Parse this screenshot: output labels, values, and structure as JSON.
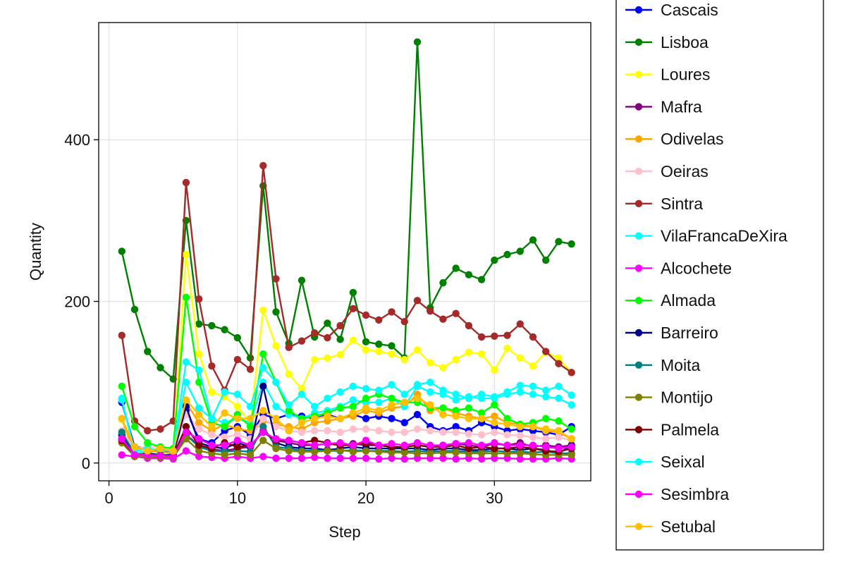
{
  "chart_data": {
    "type": "line",
    "xlabel": "Step",
    "ylabel": "Quantity",
    "xlim": [
      -0.8,
      37.5
    ],
    "ylim": [
      -22,
      545
    ],
    "xticks": [
      0,
      10,
      20,
      30
    ],
    "yticks": [
      0,
      200,
      400
    ],
    "grid": true,
    "legend_position": "right",
    "x": [
      1,
      2,
      3,
      4,
      5,
      6,
      7,
      8,
      9,
      10,
      11,
      12,
      13,
      14,
      15,
      16,
      17,
      18,
      19,
      20,
      21,
      22,
      23,
      24,
      25,
      26,
      27,
      28,
      29,
      30,
      31,
      32,
      33,
      34,
      35,
      36
    ],
    "series": [
      {
        "name": "Cascais",
        "color": "#0000ff",
        "values": [
          75,
          20,
          18,
          15,
          12,
          65,
          30,
          25,
          40,
          45,
          35,
          60,
          55,
          60,
          58,
          55,
          60,
          55,
          60,
          55,
          58,
          55,
          50,
          60,
          45,
          40,
          45,
          40,
          50,
          45,
          40,
          42,
          40,
          38,
          35,
          45
        ]
      },
      {
        "name": "Lisboa",
        "color": "#008000",
        "values": [
          262,
          190,
          138,
          118,
          104,
          300,
          172,
          170,
          165,
          155,
          130,
          343,
          187,
          148,
          226,
          156,
          173,
          153,
          211,
          150,
          147,
          145,
          130,
          521,
          192,
          223,
          241,
          233,
          227,
          251,
          258,
          262,
          276,
          251,
          274,
          271
        ]
      },
      {
        "name": "Loures",
        "color": "#ffff00",
        "values": [
          54,
          12,
          14,
          14,
          11,
          258,
          135,
          88,
          82,
          70,
          50,
          189,
          145,
          110,
          92,
          128,
          130,
          134,
          152,
          140,
          138,
          135,
          128,
          140,
          124,
          118,
          128,
          137,
          135,
          115,
          142,
          130,
          120,
          137,
          130,
          112
        ]
      },
      {
        "name": "Mafra",
        "color": "#800080",
        "values": [
          30,
          10,
          9,
          8,
          8,
          35,
          22,
          17,
          15,
          18,
          20,
          40,
          28,
          25,
          22,
          22,
          24,
          22,
          24,
          22,
          22,
          20,
          20,
          22,
          20,
          22,
          24,
          22,
          20,
          24,
          22,
          25,
          20,
          22,
          20,
          22
        ]
      },
      {
        "name": "Odivelas",
        "color": "#ffa500",
        "values": [
          55,
          12,
          15,
          14,
          12,
          75,
          50,
          40,
          48,
          42,
          40,
          52,
          48,
          45,
          42,
          50,
          52,
          55,
          58,
          65,
          62,
          68,
          70,
          85,
          65,
          68,
          62,
          58,
          55,
          58,
          50,
          48,
          45,
          40,
          38,
          30
        ]
      },
      {
        "name": "Oeiras",
        "color": "#ffc0cb",
        "values": [
          40,
          18,
          20,
          20,
          18,
          60,
          42,
          35,
          32,
          35,
          30,
          55,
          45,
          40,
          38,
          40,
          40,
          38,
          42,
          42,
          40,
          38,
          38,
          42,
          40,
          38,
          38,
          36,
          35,
          38,
          35,
          34,
          32,
          30,
          32,
          28
        ]
      },
      {
        "name": "Sintra",
        "color": "#a52a2a",
        "values": [
          158,
          52,
          40,
          42,
          52,
          347,
          203,
          120,
          90,
          128,
          116,
          368,
          228,
          143,
          151,
          161,
          155,
          170,
          191,
          183,
          177,
          187,
          175,
          201,
          188,
          178,
          185,
          170,
          156,
          157,
          158,
          172,
          156,
          138,
          123,
          112
        ]
      },
      {
        "name": "VilaFrancaDeXira",
        "color": "#00ffff",
        "values": [
          78,
          15,
          18,
          16,
          15,
          100,
          68,
          55,
          50,
          55,
          50,
          100,
          70,
          60,
          55,
          62,
          65,
          70,
          78,
          75,
          75,
          80,
          70,
          95,
          88,
          85,
          78,
          82,
          80,
          80,
          85,
          88,
          85,
          82,
          80,
          72
        ]
      },
      {
        "name": "Alcochete",
        "color": "#ff00ff",
        "values": [
          10,
          8,
          6,
          6,
          5,
          15,
          8,
          7,
          6,
          8,
          6,
          8,
          6,
          6,
          6,
          7,
          6,
          6,
          6,
          6,
          5,
          6,
          5,
          6,
          6,
          6,
          5,
          6,
          5,
          6,
          6,
          5,
          5,
          5,
          6,
          5
        ]
      },
      {
        "name": "Almada",
        "color": "#00ff00",
        "values": [
          95,
          45,
          25,
          20,
          18,
          205,
          100,
          50,
          45,
          60,
          45,
          135,
          100,
          65,
          55,
          58,
          62,
          68,
          70,
          80,
          85,
          80,
          75,
          75,
          68,
          68,
          65,
          68,
          62,
          72,
          55,
          48,
          50,
          55,
          52,
          42
        ]
      },
      {
        "name": "Barreiro",
        "color": "#00008b",
        "values": [
          35,
          10,
          12,
          10,
          10,
          70,
          25,
          20,
          18,
          25,
          20,
          95,
          25,
          20,
          18,
          18,
          16,
          18,
          20,
          18,
          18,
          18,
          18,
          18,
          16,
          18,
          18,
          16,
          16,
          18,
          18,
          16,
          18,
          16,
          12,
          22
        ]
      },
      {
        "name": "Moita",
        "color": "#008080",
        "values": [
          38,
          12,
          10,
          10,
          9,
          35,
          20,
          15,
          14,
          15,
          14,
          45,
          20,
          18,
          15,
          16,
          15,
          15,
          16,
          15,
          15,
          15,
          14,
          15,
          14,
          15,
          15,
          14,
          14,
          15,
          14,
          14,
          13,
          14,
          12,
          12
        ]
      },
      {
        "name": "Montijo",
        "color": "#808000",
        "values": [
          25,
          8,
          8,
          7,
          7,
          30,
          15,
          12,
          10,
          12,
          10,
          28,
          18,
          15,
          14,
          14,
          15,
          16,
          14,
          15,
          14,
          13,
          13,
          12,
          12,
          13,
          13,
          12,
          12,
          12,
          12,
          12,
          11,
          10,
          10,
          10
        ]
      },
      {
        "name": "Palmela",
        "color": "#800000",
        "values": [
          28,
          10,
          10,
          9,
          9,
          45,
          22,
          18,
          25,
          20,
          22,
          38,
          28,
          28,
          25,
          28,
          25,
          22,
          22,
          25,
          22,
          20,
          20,
          22,
          20,
          20,
          22,
          18,
          20,
          18,
          18,
          20,
          18,
          15,
          14,
          18
        ]
      },
      {
        "name": "Seixal",
        "color": "#00ffff",
        "values": [
          80,
          12,
          15,
          18,
          14,
          125,
          115,
          55,
          88,
          85,
          70,
          118,
          100,
          72,
          85,
          70,
          80,
          88,
          95,
          92,
          90,
          97,
          85,
          97,
          100,
          90,
          85,
          80,
          85,
          82,
          88,
          96,
          95,
          90,
          95,
          84
        ]
      },
      {
        "name": "Sesimbra",
        "color": "#ff00ff",
        "values": [
          30,
          10,
          10,
          9,
          8,
          38,
          30,
          22,
          22,
          28,
          22,
          38,
          30,
          28,
          25,
          22,
          24,
          25,
          22,
          28,
          22,
          24,
          22,
          25,
          22,
          22,
          24,
          25,
          22,
          25,
          22,
          22,
          22,
          20,
          18,
          20
        ]
      },
      {
        "name": "Setubal",
        "color": "#ffc000",
        "values": [
          55,
          20,
          15,
          18,
          15,
          78,
          60,
          45,
          62,
          55,
          55,
          65,
          55,
          40,
          50,
          55,
          58,
          55,
          62,
          68,
          65,
          72,
          75,
          80,
          72,
          60,
          58,
          55,
          55,
          50,
          48,
          45,
          45,
          42,
          40,
          30
        ]
      }
    ]
  }
}
